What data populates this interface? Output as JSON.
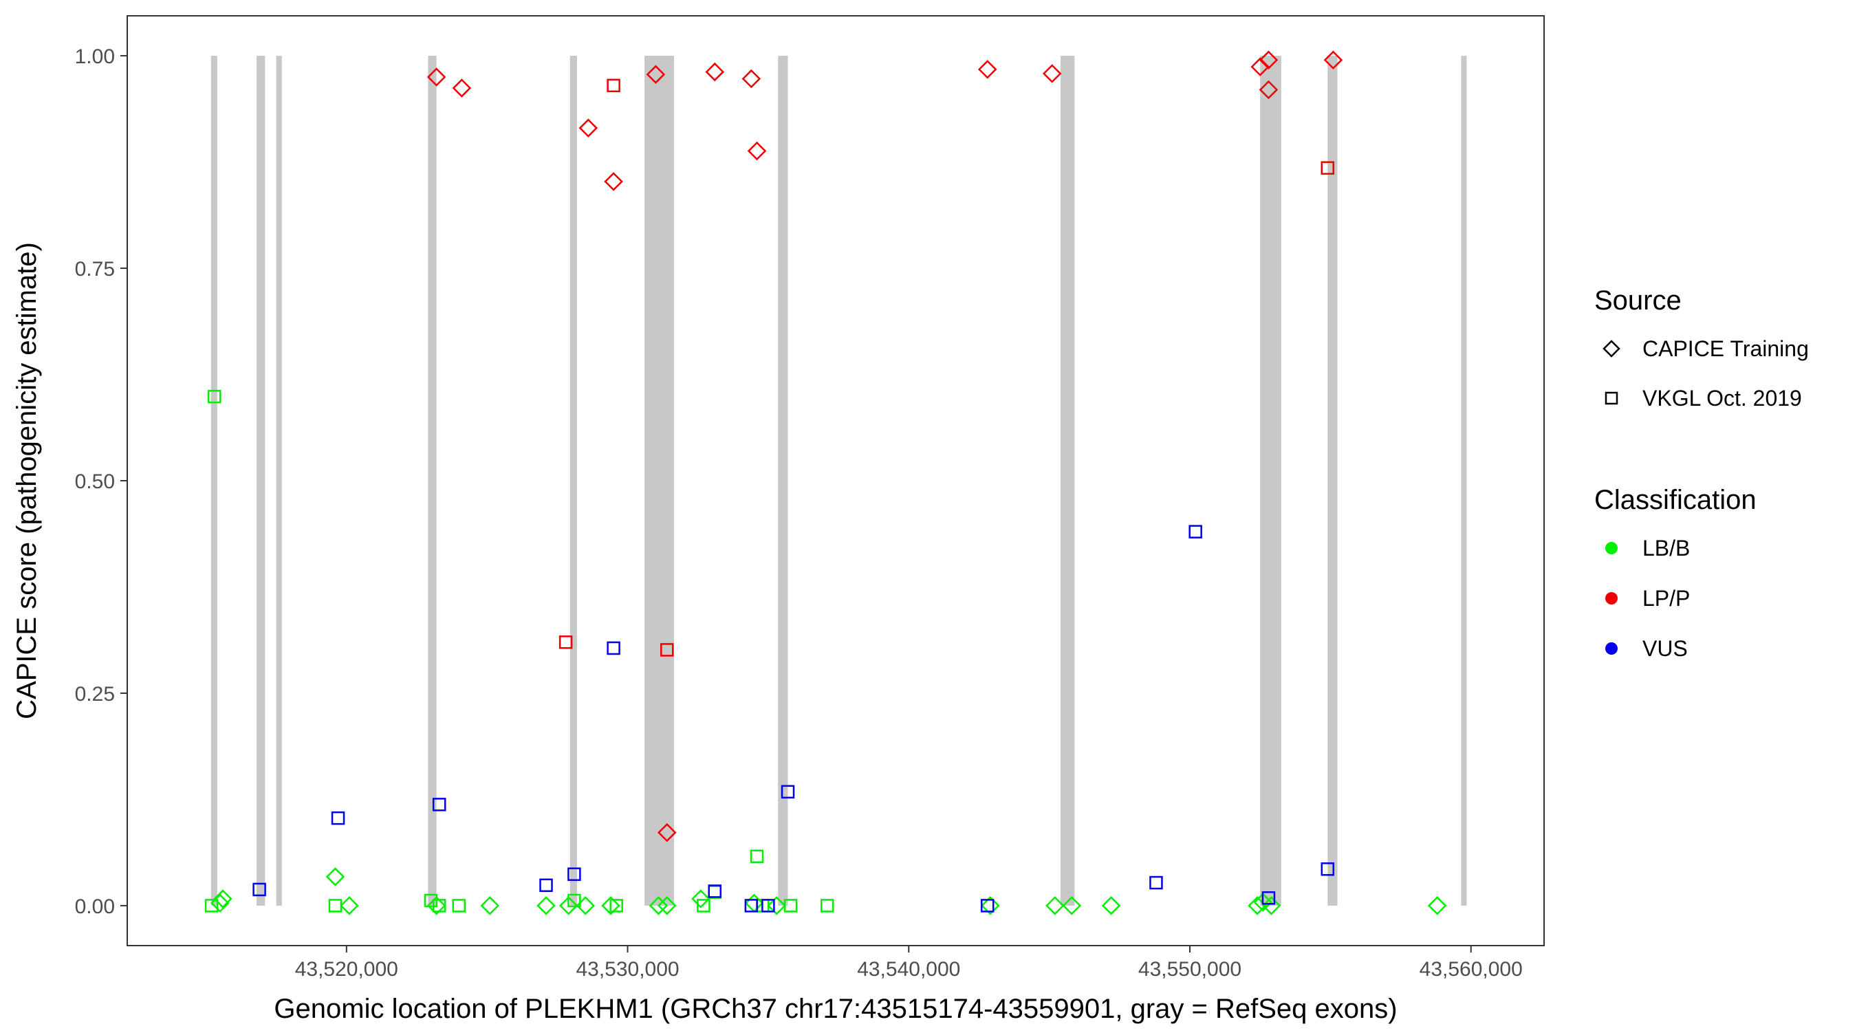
{
  "chart_data": {
    "type": "scatter",
    "title": "",
    "xlabel": "Genomic location of PLEKHM1 (GRCh37 chr17:43515174-43559901, gray = RefSeq exons)",
    "ylabel": "CAPICE score (pathogenicity estimate)",
    "xlim": [
      43512200,
      43562600
    ],
    "ylim": [
      -0.047,
      1.047
    ],
    "x_ticks": [
      43520000,
      43530000,
      43540000,
      43550000,
      43560000
    ],
    "x_tick_labels": [
      "43,520,000",
      "43,530,000",
      "43,540,000",
      "43,550,000",
      "43,560,000"
    ],
    "y_ticks": [
      0,
      0.25,
      0.5,
      0.75,
      1.0
    ],
    "y_tick_labels": [
      "0.00",
      "0.25",
      "0.50",
      "0.75",
      "1.00"
    ],
    "grid": false,
    "exon_shading": "gray",
    "exons": [
      [
        43515180,
        43515400
      ],
      [
        43516800,
        43517100
      ],
      [
        43517500,
        43517700
      ],
      [
        43522900,
        43523200
      ],
      [
        43527950,
        43528200
      ],
      [
        43530600,
        43531650
      ],
      [
        43535350,
        43535700
      ],
      [
        43545400,
        43545900
      ],
      [
        43552500,
        43553250
      ],
      [
        43554900,
        43555250
      ],
      [
        43559650,
        43559790
      ]
    ],
    "legends": [
      {
        "title": "Source",
        "entries": [
          {
            "label": "CAPICE Training",
            "shape": "diamond"
          },
          {
            "label": "VKGL Oct. 2019",
            "shape": "square"
          }
        ]
      },
      {
        "title": "Classification",
        "entries": [
          {
            "label": "LB/B",
            "color": "#00ee00"
          },
          {
            "label": "LP/P",
            "color": "#ee0000"
          },
          {
            "label": "VUS",
            "color": "#0000ee"
          }
        ]
      }
    ],
    "legend_position": "right",
    "colors": {
      "LB/B": "#00ee00",
      "LP/P": "#ee0000",
      "VUS": "#0000ee"
    },
    "points": [
      {
        "x": 43523200,
        "y": 0.975,
        "class": "LP/P",
        "source": "CAPICE Training"
      },
      {
        "x": 43524100,
        "y": 0.962,
        "class": "LP/P",
        "source": "CAPICE Training"
      },
      {
        "x": 43528600,
        "y": 0.915,
        "class": "LP/P",
        "source": "CAPICE Training"
      },
      {
        "x": 43529500,
        "y": 0.965,
        "class": "LP/P",
        "source": "VKGL Oct. 2019"
      },
      {
        "x": 43529500,
        "y": 0.852,
        "class": "LP/P",
        "source": "CAPICE Training"
      },
      {
        "x": 43531000,
        "y": 0.978,
        "class": "LP/P",
        "source": "CAPICE Training"
      },
      {
        "x": 43533100,
        "y": 0.981,
        "class": "LP/P",
        "source": "CAPICE Training"
      },
      {
        "x": 43534400,
        "y": 0.973,
        "class": "LP/P",
        "source": "CAPICE Training"
      },
      {
        "x": 43534600,
        "y": 0.888,
        "class": "LP/P",
        "source": "CAPICE Training"
      },
      {
        "x": 43542800,
        "y": 0.984,
        "class": "LP/P",
        "source": "CAPICE Training"
      },
      {
        "x": 43545100,
        "y": 0.979,
        "class": "LP/P",
        "source": "CAPICE Training"
      },
      {
        "x": 43552500,
        "y": 0.987,
        "class": "LP/P",
        "source": "CAPICE Training"
      },
      {
        "x": 43552800,
        "y": 0.995,
        "class": "LP/P",
        "source": "CAPICE Training"
      },
      {
        "x": 43552800,
        "y": 0.96,
        "class": "LP/P",
        "source": "CAPICE Training"
      },
      {
        "x": 43555100,
        "y": 0.995,
        "class": "LP/P",
        "source": "CAPICE Training"
      },
      {
        "x": 43554900,
        "y": 0.868,
        "class": "LP/P",
        "source": "VKGL Oct. 2019"
      },
      {
        "x": 43527800,
        "y": 0.31,
        "class": "LP/P",
        "source": "VKGL Oct. 2019"
      },
      {
        "x": 43531400,
        "y": 0.301,
        "class": "LP/P",
        "source": "VKGL Oct. 2019"
      },
      {
        "x": 43531400,
        "y": 0.086,
        "class": "LP/P",
        "source": "CAPICE Training"
      },
      {
        "x": 43515300,
        "y": 0.599,
        "class": "LB/B",
        "source": "VKGL Oct. 2019"
      },
      {
        "x": 43519600,
        "y": 0.034,
        "class": "LB/B",
        "source": "CAPICE Training"
      },
      {
        "x": 43534600,
        "y": 0.058,
        "class": "LB/B",
        "source": "VKGL Oct. 2019"
      },
      {
        "x": 43515200,
        "y": 0.0,
        "class": "LB/B",
        "source": "VKGL Oct. 2019"
      },
      {
        "x": 43515500,
        "y": 0.003,
        "class": "LB/B",
        "source": "CAPICE Training"
      },
      {
        "x": 43515600,
        "y": 0.008,
        "class": "LB/B",
        "source": "CAPICE Training"
      },
      {
        "x": 43519600,
        "y": 0.0,
        "class": "LB/B",
        "source": "VKGL Oct. 2019"
      },
      {
        "x": 43520100,
        "y": 0.0,
        "class": "LB/B",
        "source": "CAPICE Training"
      },
      {
        "x": 43523000,
        "y": 0.006,
        "class": "LB/B",
        "source": "VKGL Oct. 2019"
      },
      {
        "x": 43523200,
        "y": 0.0,
        "class": "LB/B",
        "source": "CAPICE Training"
      },
      {
        "x": 43523300,
        "y": 0.0,
        "class": "LB/B",
        "source": "VKGL Oct. 2019"
      },
      {
        "x": 43524000,
        "y": 0.0,
        "class": "LB/B",
        "source": "VKGL Oct. 2019"
      },
      {
        "x": 43525100,
        "y": 0.0,
        "class": "LB/B",
        "source": "CAPICE Training"
      },
      {
        "x": 43527100,
        "y": 0.0,
        "class": "LB/B",
        "source": "CAPICE Training"
      },
      {
        "x": 43527900,
        "y": 0.0,
        "class": "LB/B",
        "source": "CAPICE Training"
      },
      {
        "x": 43528100,
        "y": 0.006,
        "class": "LB/B",
        "source": "VKGL Oct. 2019"
      },
      {
        "x": 43528500,
        "y": 0.0,
        "class": "LB/B",
        "source": "CAPICE Training"
      },
      {
        "x": 43529400,
        "y": 0.0,
        "class": "LB/B",
        "source": "CAPICE Training"
      },
      {
        "x": 43529600,
        "y": 0.0,
        "class": "LB/B",
        "source": "VKGL Oct. 2019"
      },
      {
        "x": 43531100,
        "y": 0.0,
        "class": "LB/B",
        "source": "CAPICE Training"
      },
      {
        "x": 43531400,
        "y": 0.0,
        "class": "LB/B",
        "source": "CAPICE Training"
      },
      {
        "x": 43532600,
        "y": 0.008,
        "class": "LB/B",
        "source": "CAPICE Training"
      },
      {
        "x": 43532700,
        "y": 0.0,
        "class": "LB/B",
        "source": "VKGL Oct. 2019"
      },
      {
        "x": 43533100,
        "y": 0.016,
        "class": "LB/B",
        "source": "VKGL Oct. 2019"
      },
      {
        "x": 43534500,
        "y": 0.003,
        "class": "LB/B",
        "source": "CAPICE Training"
      },
      {
        "x": 43534800,
        "y": 0.0,
        "class": "LB/B",
        "source": "VKGL Oct. 2019"
      },
      {
        "x": 43535300,
        "y": 0.0,
        "class": "LB/B",
        "source": "CAPICE Training"
      },
      {
        "x": 43535800,
        "y": 0.0,
        "class": "LB/B",
        "source": "VKGL Oct. 2019"
      },
      {
        "x": 43537100,
        "y": 0.0,
        "class": "LB/B",
        "source": "VKGL Oct. 2019"
      },
      {
        "x": 43542900,
        "y": 0.0,
        "class": "LB/B",
        "source": "CAPICE Training"
      },
      {
        "x": 43545200,
        "y": 0.0,
        "class": "LB/B",
        "source": "CAPICE Training"
      },
      {
        "x": 43545800,
        "y": 0.0,
        "class": "LB/B",
        "source": "CAPICE Training"
      },
      {
        "x": 43547200,
        "y": 0.0,
        "class": "LB/B",
        "source": "CAPICE Training"
      },
      {
        "x": 43552400,
        "y": 0.0,
        "class": "LB/B",
        "source": "CAPICE Training"
      },
      {
        "x": 43552600,
        "y": 0.004,
        "class": "LB/B",
        "source": "CAPICE Training"
      },
      {
        "x": 43552900,
        "y": 0.0,
        "class": "LB/B",
        "source": "CAPICE Training"
      },
      {
        "x": 43558800,
        "y": 0.0,
        "class": "LB/B",
        "source": "CAPICE Training"
      },
      {
        "x": 43516900,
        "y": 0.019,
        "class": "VUS",
        "source": "VKGL Oct. 2019"
      },
      {
        "x": 43519700,
        "y": 0.103,
        "class": "VUS",
        "source": "VKGL Oct. 2019"
      },
      {
        "x": 43523300,
        "y": 0.119,
        "class": "VUS",
        "source": "VKGL Oct. 2019"
      },
      {
        "x": 43527100,
        "y": 0.024,
        "class": "VUS",
        "source": "VKGL Oct. 2019"
      },
      {
        "x": 43528100,
        "y": 0.037,
        "class": "VUS",
        "source": "VKGL Oct. 2019"
      },
      {
        "x": 43529500,
        "y": 0.303,
        "class": "VUS",
        "source": "VKGL Oct. 2019"
      },
      {
        "x": 43533100,
        "y": 0.017,
        "class": "VUS",
        "source": "VKGL Oct. 2019"
      },
      {
        "x": 43534400,
        "y": 0.0,
        "class": "VUS",
        "source": "VKGL Oct. 2019"
      },
      {
        "x": 43535000,
        "y": 0.0,
        "class": "VUS",
        "source": "VKGL Oct. 2019"
      },
      {
        "x": 43535700,
        "y": 0.134,
        "class": "VUS",
        "source": "VKGL Oct. 2019"
      },
      {
        "x": 43542800,
        "y": 0.0,
        "class": "VUS",
        "source": "VKGL Oct. 2019"
      },
      {
        "x": 43548800,
        "y": 0.027,
        "class": "VUS",
        "source": "VKGL Oct. 2019"
      },
      {
        "x": 43550200,
        "y": 0.44,
        "class": "VUS",
        "source": "VKGL Oct. 2019"
      },
      {
        "x": 43552800,
        "y": 0.009,
        "class": "VUS",
        "source": "VKGL Oct. 2019"
      },
      {
        "x": 43554900,
        "y": 0.043,
        "class": "VUS",
        "source": "VKGL Oct. 2019"
      }
    ]
  }
}
